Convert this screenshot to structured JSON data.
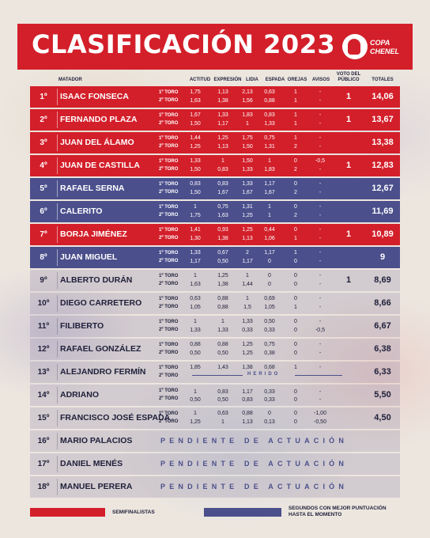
{
  "header": {
    "title": "CLASIFICACIÓN 2023",
    "logo_line1": "COPA",
    "logo_line2": "CHENEL"
  },
  "columns": {
    "matador": "MATADOR",
    "actitud": "ACTITUD",
    "expresion": "EXPRESIÓN",
    "lidia": "LIDIA",
    "espada": "ESPADA",
    "orejas": "OREJAS",
    "avisos": "AVISOS",
    "voto1": "VOTO DEL",
    "voto2": "PÚBLICO",
    "totales": "TOTALES"
  },
  "toro_labels": {
    "first": "1º TORO",
    "second": "2º TORO"
  },
  "colors": {
    "red": "#d31f2a",
    "navy": "#4b4f8c"
  },
  "rows": [
    {
      "pos": "1º",
      "name": "ISAAC FONSECA",
      "style": "red",
      "t1": [
        "1,75",
        "1,13",
        "2,13",
        "0,63",
        "1",
        "-"
      ],
      "t2": [
        "1,63",
        "1,38",
        "1,56",
        "0,88",
        "1",
        "-"
      ],
      "voto": "1",
      "total": "14,06"
    },
    {
      "pos": "2º",
      "name": "FERNANDO PLAZA",
      "style": "red",
      "t1": [
        "1,67",
        "1,33",
        "1,83",
        "0,83",
        "1",
        "-"
      ],
      "t2": [
        "1,50",
        "1,17",
        "1",
        "1,33",
        "1",
        "-"
      ],
      "voto": "1",
      "total": "13,67"
    },
    {
      "pos": "3º",
      "name": "JUAN DEL ÁLAMO",
      "style": "red",
      "t1": [
        "1,44",
        "1,25",
        "1,75",
        "0,75",
        "1",
        "-"
      ],
      "t2": [
        "1,25",
        "1,13",
        "1,50",
        "1,31",
        "2",
        "-"
      ],
      "voto": "",
      "total": "13,38"
    },
    {
      "pos": "4º",
      "name": "JUAN DE CASTILLA",
      "style": "red",
      "t1": [
        "1,33",
        "1",
        "1,50",
        "1",
        "0",
        "-0,5"
      ],
      "t2": [
        "1,50",
        "0,83",
        "1,33",
        "1,83",
        "2",
        "-"
      ],
      "voto": "1",
      "total": "12,83"
    },
    {
      "pos": "5º",
      "name": "RAFAEL SERNA",
      "style": "navy",
      "t1": [
        "0,83",
        "0,83",
        "1,33",
        "1,17",
        "0",
        "-"
      ],
      "t2": [
        "1,50",
        "1,67",
        "1,67",
        "1,67",
        "2",
        "-"
      ],
      "voto": "",
      "total": "12,67"
    },
    {
      "pos": "6º",
      "name": "CALERITO",
      "style": "navy",
      "t1": [
        "1",
        "0,75",
        "1,31",
        "1",
        "0",
        "-"
      ],
      "t2": [
        "1,75",
        "1,63",
        "1,25",
        "1",
        "2",
        "-"
      ],
      "voto": "",
      "total": "11,69"
    },
    {
      "pos": "7º",
      "name": "BORJA JIMÉNEZ",
      "style": "red",
      "t1": [
        "1,41",
        "0,93",
        "1,25",
        "0,44",
        "0",
        "-"
      ],
      "t2": [
        "1,30",
        "1,38",
        "1,13",
        "1,06",
        "1",
        "-"
      ],
      "voto": "1",
      "total": "10,89"
    },
    {
      "pos": "8º",
      "name": "JUAN MIGUEL",
      "style": "navy",
      "t1": [
        "1,33",
        "0,67",
        "2",
        "1,17",
        "1",
        "-"
      ],
      "t2": [
        "1,17",
        "0,50",
        "1,17",
        "0",
        "0",
        "-"
      ],
      "voto": "",
      "total": "9"
    },
    {
      "pos": "9º",
      "name": "ALBERTO DURÁN",
      "style": "plain",
      "t1": [
        "1",
        "1,25",
        "1",
        "0",
        "0",
        "-"
      ],
      "t2": [
        "1,63",
        "1,38",
        "1,44",
        "0",
        "0",
        "-"
      ],
      "voto": "1",
      "total": "8,69"
    },
    {
      "pos": "10º",
      "name": "DIEGO CARRETERO",
      "style": "plain",
      "t1": [
        "0,63",
        "0,88",
        "1",
        "0,69",
        "0",
        "-"
      ],
      "t2": [
        "1,05",
        "0,88",
        "1,5",
        "1,05",
        "1",
        "-"
      ],
      "voto": "",
      "total": "8,66"
    },
    {
      "pos": "11º",
      "name": "FILIBERTO",
      "style": "plain",
      "t1": [
        "1",
        "1",
        "1,33",
        "0,50",
        "0",
        "-"
      ],
      "t2": [
        "1,33",
        "1,33",
        "0,33",
        "0,33",
        "0",
        "-0,5"
      ],
      "voto": "",
      "total": "6,67"
    },
    {
      "pos": "12º",
      "name": "RAFAEL GONZÁLEZ",
      "style": "plain",
      "t1": [
        "0,88",
        "0,88",
        "1,25",
        "0,75",
        "0",
        "-"
      ],
      "t2": [
        "0,50",
        "0,50",
        "1,25",
        "0,38",
        "0",
        "-"
      ],
      "voto": "",
      "total": "6,38"
    },
    {
      "pos": "13º",
      "name": "ALEJANDRO FERMÍN",
      "style": "plain",
      "herido": "HERIDO",
      "t1": [
        "1,85",
        "1,43",
        "1,38",
        "0,68",
        "1",
        "-"
      ],
      "t2": [],
      "voto": "",
      "total": "6,33"
    },
    {
      "pos": "14º",
      "name": "ADRIANO",
      "style": "plain",
      "t1": [
        "",
        "",
        "",
        "",
        "",
        ""
      ],
      "t2": [
        "0,50",
        "0,50",
        "0,83",
        "0,33",
        "0",
        "-"
      ],
      "t2b": [
        "1",
        "0,83",
        "1,17",
        "0,33",
        "0",
        "-"
      ],
      "voto": "",
      "total": "5,50"
    },
    {
      "pos": "15º",
      "name": "FRANCISCO JOSÉ ESPADA",
      "style": "plain",
      "t1": [
        "1",
        "0,63",
        "0,88",
        "0",
        "0",
        "-1,00"
      ],
      "t2": [
        "1,25",
        "1",
        "1,13",
        "0,13",
        "0",
        "-0,50"
      ],
      "voto": "",
      "total": "4,50"
    },
    {
      "pos": "16º",
      "name": "MARIO PALACIOS",
      "style": "plain",
      "pending": "PENDIENTE   DE   ACTUACIÓN"
    },
    {
      "pos": "17º",
      "name": "DANIEL MENÉS",
      "style": "plain",
      "pending": "PENDIENTE   DE   ACTUACIÓN"
    },
    {
      "pos": "18º",
      "name": "MANUEL PERERA",
      "style": "plain",
      "pending": "PENDIENTE   DE   ACTUACIÓN"
    }
  ],
  "legend": {
    "semi": "SEMIFINALISTAS",
    "second1": "SEGUNDOS CON MEJOR PUNTUACIÓN",
    "second2": "HASTA EL MOMENTO"
  }
}
